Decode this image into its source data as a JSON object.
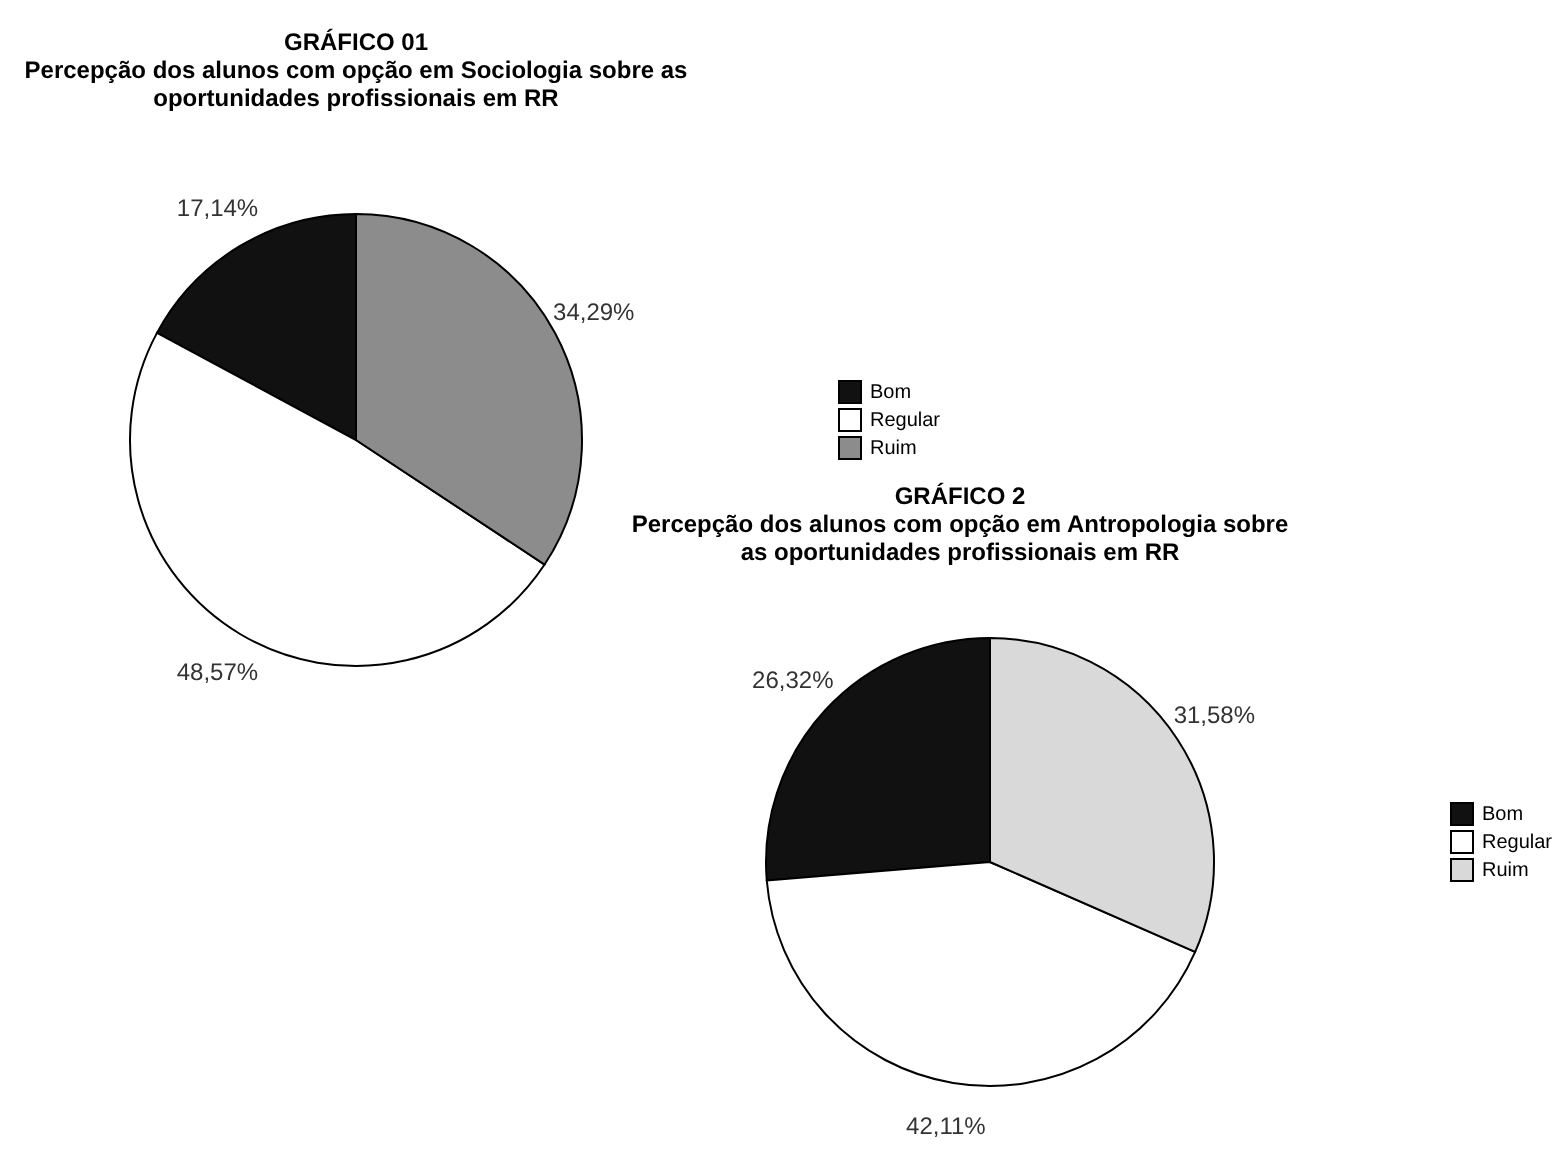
{
  "chart_data": [
    {
      "type": "pie",
      "title": "GRÁFICO 01",
      "subtitle": "Percepção dos alunos com opção em Sociologia sobre as oportunidades profissionais em RR",
      "categories": [
        "Bom",
        "Regular",
        "Ruim"
      ],
      "values": [
        17.14,
        48.57,
        34.29
      ],
      "colors": [
        "#111111",
        "#ffffff",
        "#8c8c8c"
      ],
      "value_labels": [
        "17,14%",
        "48,57%",
        "34,29%"
      ],
      "legend": "right"
    },
    {
      "type": "pie",
      "title": "GRÁFICO 2",
      "subtitle": "Percepção dos alunos com opção em Antropologia sobre as oportunidades profissionais em RR",
      "categories": [
        "Bom",
        "Regular",
        "Ruim"
      ],
      "values": [
        26.32,
        42.11,
        31.58
      ],
      "colors": [
        "#111111",
        "#ffffff",
        "#d9d9d9"
      ],
      "value_labels": [
        "26,32%",
        "42,11%",
        "31,58%"
      ],
      "legend": "right"
    }
  ]
}
